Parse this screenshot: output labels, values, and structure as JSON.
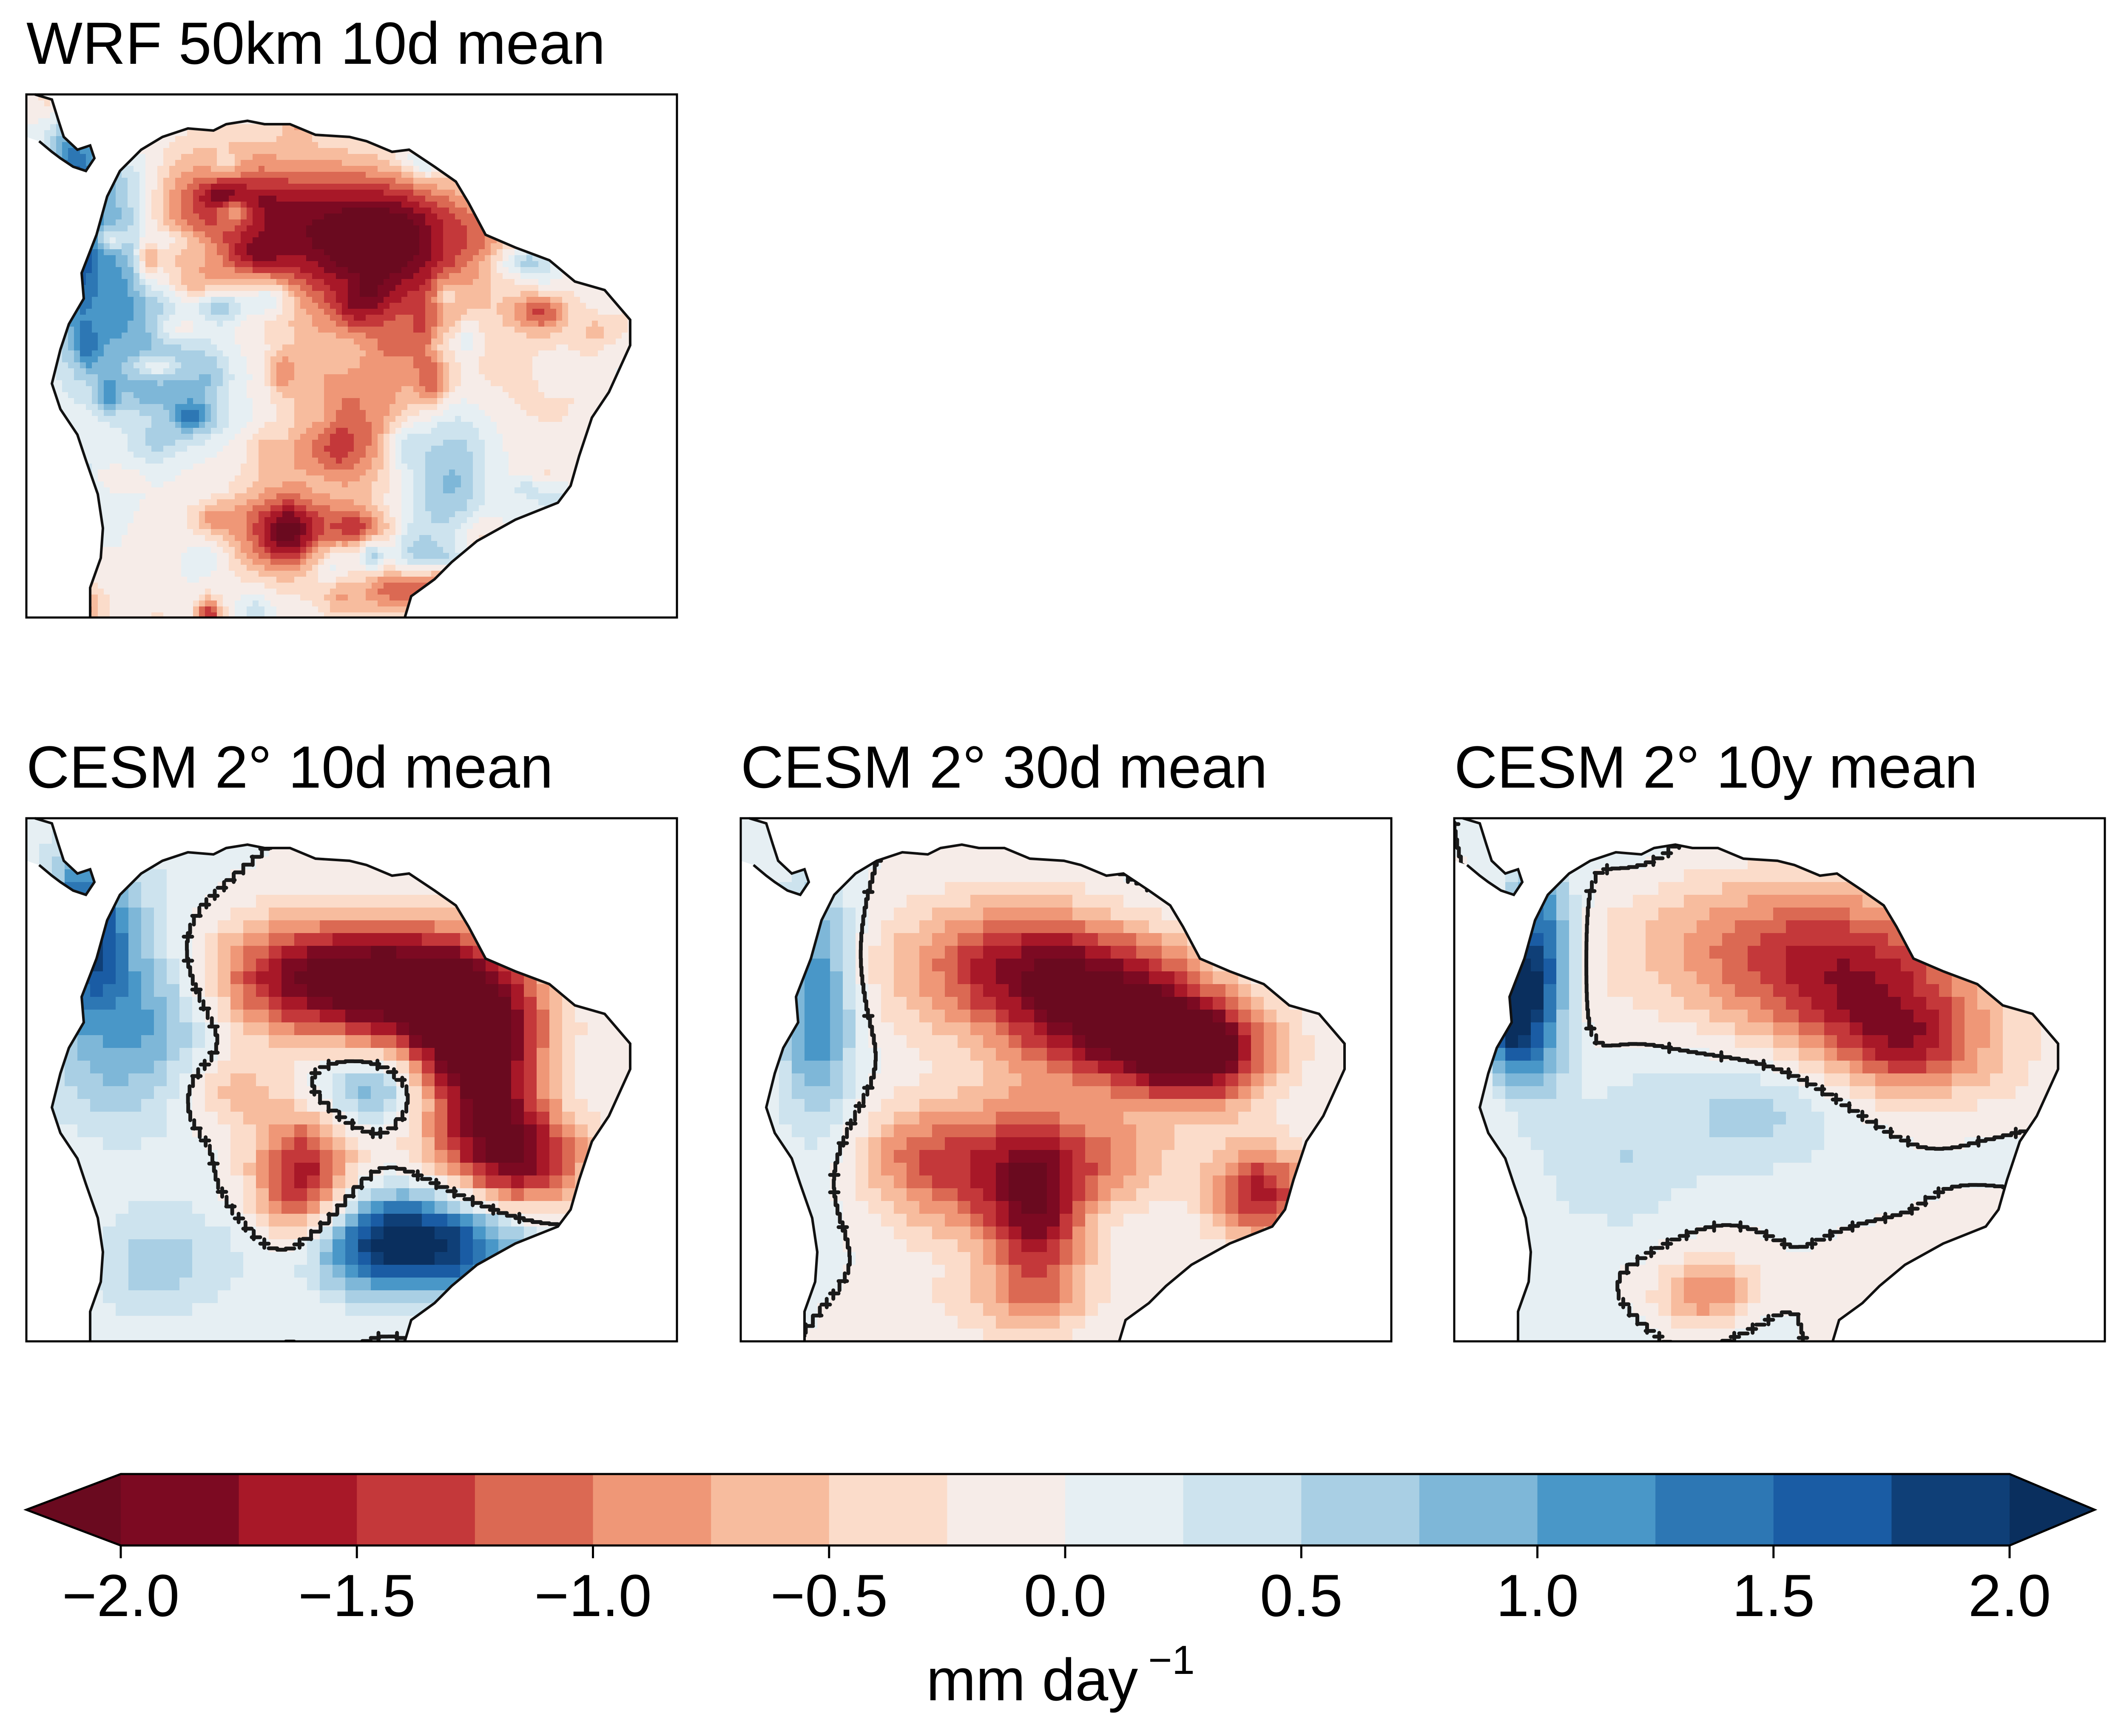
{
  "panels": [
    {
      "title": "WRF 50km 10d mean",
      "style": "fine",
      "seed": 11
    },
    {
      "title": "CESM 2° 10d mean",
      "style": "cesm10d",
      "seed": 23
    },
    {
      "title": "CESM 2° 30d mean",
      "style": "cesm30d",
      "seed": 37
    },
    {
      "title": "CESM 2° 10y mean",
      "style": "cesm10y",
      "seed": 41
    }
  ],
  "colorbar": {
    "ticks": [
      "−2.0",
      "−1.5",
      "−1.0",
      "−0.5",
      "0.0",
      "0.5",
      "1.0",
      "1.5",
      "2.0"
    ],
    "unit": "mm day",
    "unit_exponent": "−1",
    "levels": [
      -2.0,
      -1.75,
      -1.5,
      -1.25,
      -1.0,
      -0.75,
      -0.5,
      -0.25,
      0.0,
      0.25,
      0.5,
      0.75,
      1.0,
      1.25,
      1.5,
      1.75,
      2.0
    ],
    "extend": "both",
    "colors": [
      "#6a0a1f",
      "#7c0a22",
      "#a81828",
      "#c4383a",
      "#db6953",
      "#ef9777",
      "#f7bc9e",
      "#fbdcca",
      "#f6ece8",
      "#e6eff3",
      "#cde3ee",
      "#a9cfe4",
      "#7eb7d8",
      "#4997c8",
      "#2d77b4",
      "#1a5ca4",
      "#0f3f77",
      "#0a2f5e"
    ],
    "colormap": "RdBu"
  }
}
